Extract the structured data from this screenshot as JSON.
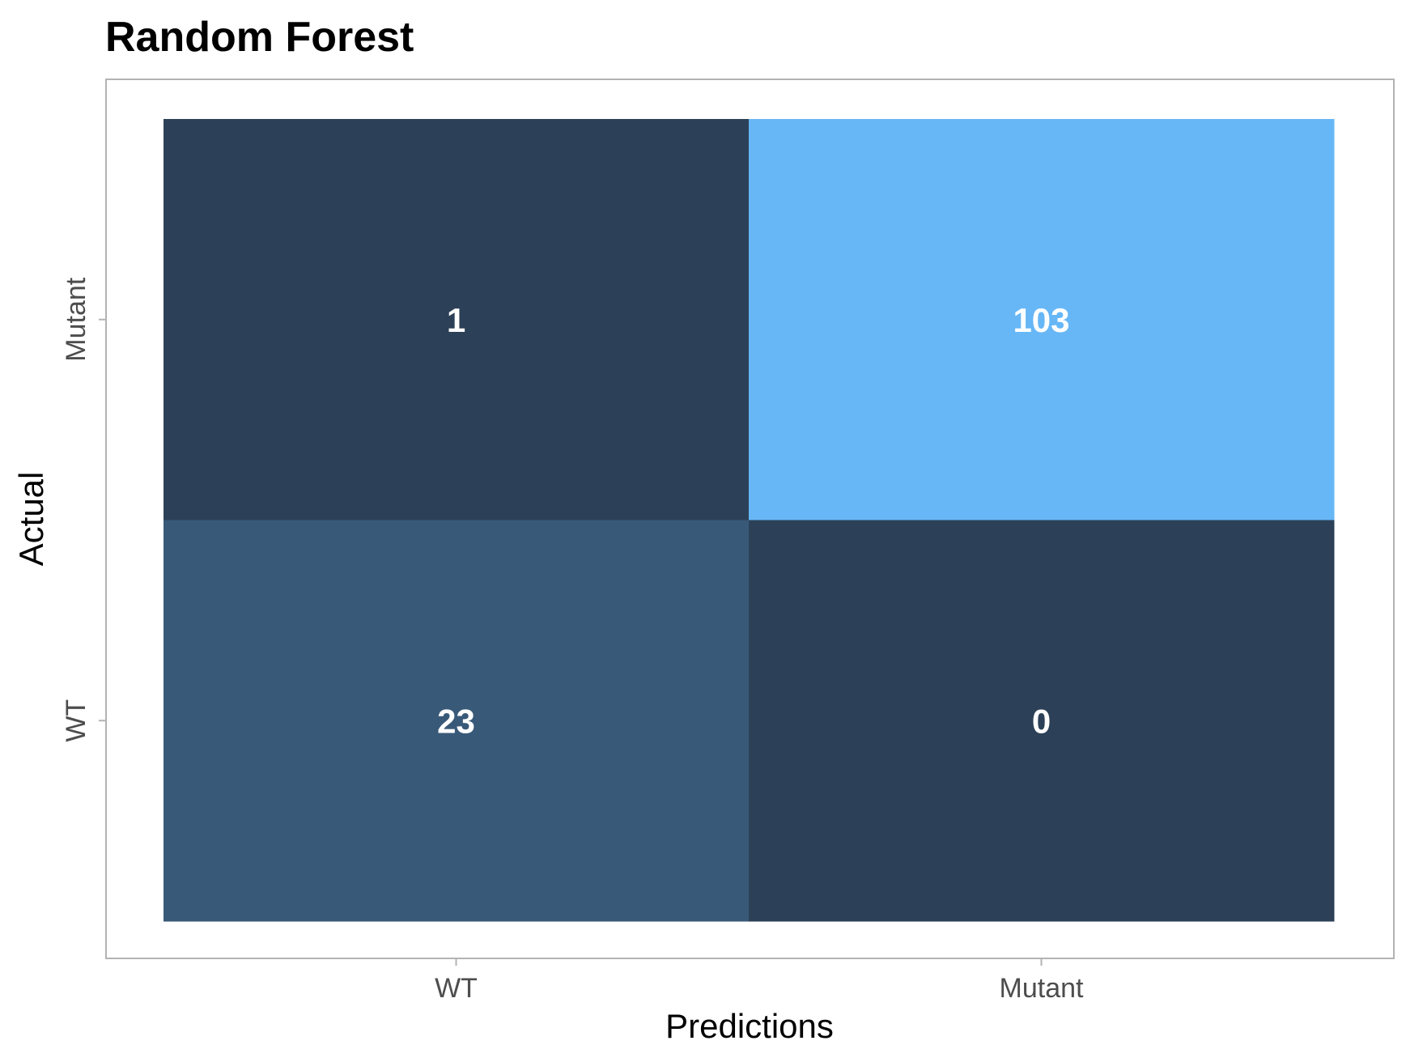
{
  "chart_data": {
    "type": "heatmap",
    "title": "Random Forest",
    "xlabel": "Predictions",
    "ylabel": "Actual",
    "x_categories": [
      "WT",
      "Mutant"
    ],
    "y_categories": [
      "WT",
      "Mutant"
    ],
    "cells": [
      {
        "x": "WT",
        "y": "Mutant",
        "value": 1,
        "color": "#2c4157"
      },
      {
        "x": "Mutant",
        "y": "Mutant",
        "value": 103,
        "color": "#67b7f7"
      },
      {
        "x": "WT",
        "y": "WT",
        "value": 23,
        "color": "#395978"
      },
      {
        "x": "Mutant",
        "y": "WT",
        "value": 0,
        "color": "#2c4157"
      }
    ],
    "grid": false,
    "legend": "none"
  }
}
